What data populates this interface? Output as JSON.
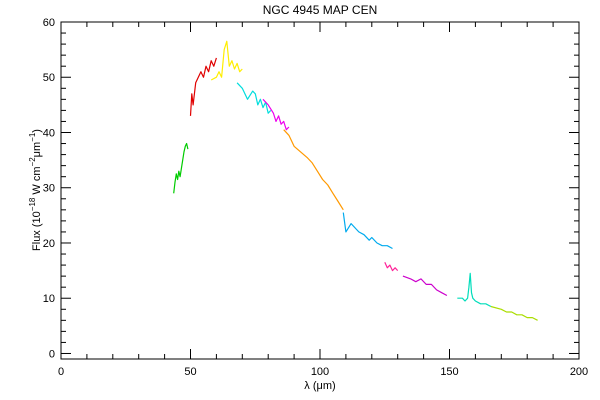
{
  "chart_data": {
    "type": "line",
    "title": "NGC 4945 MAP CEN",
    "xlabel": "λ (μm)",
    "ylabel_main": "Flux (10",
    "ylabel_exp1": "−18",
    "ylabel_mid": " W cm",
    "ylabel_exp2": "−2",
    "ylabel_um": "μm",
    "ylabel_exp3": "−1",
    "ylabel_close": ")",
    "xlim": [
      0,
      200
    ],
    "ylim": [
      -1,
      60
    ],
    "xticks": [
      0,
      50,
      100,
      150,
      200
    ],
    "xtick_labels": [
      "0",
      "50",
      "100",
      "150",
      "200"
    ],
    "yticks": [
      0,
      10,
      20,
      30,
      40,
      50,
      60
    ],
    "ytick_labels": [
      "0",
      "10",
      "20",
      "30",
      "40",
      "50",
      "60"
    ],
    "grid": false,
    "series": [
      {
        "color": "#00cc00",
        "x": [
          43.5,
          44,
          44.5,
          45,
          45.5,
          46,
          46.5,
          47,
          47.5,
          48,
          48.5,
          49
        ],
        "y": [
          29,
          31,
          32.5,
          31.5,
          33,
          32,
          33.5,
          35,
          36.5,
          37.5,
          38,
          37
        ]
      },
      {
        "color": "#e00000",
        "x": [
          50,
          50.5,
          51,
          52,
          53,
          54,
          55,
          56,
          57,
          58,
          59,
          60
        ],
        "y": [
          43,
          47,
          45,
          49,
          50,
          51,
          50,
          52,
          51,
          53,
          52,
          53.5
        ]
      },
      {
        "color": "#ffee00",
        "x": [
          58,
          60,
          61,
          62,
          63,
          64,
          65,
          66,
          67,
          68,
          69,
          70
        ],
        "y": [
          49.5,
          50,
          51,
          50,
          55,
          56.5,
          52,
          53,
          51.5,
          52.5,
          51,
          51.5
        ]
      },
      {
        "color": "#00dddd",
        "x": [
          68,
          70,
          72,
          74,
          75,
          76,
          77,
          78,
          79,
          80,
          81
        ],
        "y": [
          49,
          48,
          46,
          47.5,
          47,
          45,
          46,
          44.5,
          45.5,
          43.5,
          44
        ]
      },
      {
        "color": "#ee00ee",
        "x": [
          78,
          80,
          82,
          83,
          84,
          85,
          86,
          87,
          88
        ],
        "y": [
          46,
          45,
          43.5,
          42,
          43,
          41.5,
          42,
          40.5,
          41
        ]
      },
      {
        "color": "#ff9900",
        "x": [
          86,
          88,
          89,
          90,
          95,
          97,
          99,
          101,
          103,
          105,
          107,
          109
        ],
        "y": [
          40.5,
          39.5,
          38.5,
          37.5,
          35.5,
          34.5,
          33,
          31.5,
          30.5,
          29,
          27.5,
          26
        ]
      },
      {
        "color": "#00aaee",
        "x": [
          109,
          110,
          112,
          115,
          117,
          119,
          120,
          122,
          124,
          126,
          128
        ],
        "y": [
          25.5,
          22,
          23.5,
          22,
          21.5,
          20.5,
          21,
          20,
          19.5,
          19.5,
          19
        ]
      },
      {
        "color": "#ff2299",
        "x": [
          125,
          126,
          127,
          128,
          129,
          130
        ],
        "y": [
          16.5,
          15.5,
          16,
          15,
          15.5,
          15
        ]
      },
      {
        "color": "#cc00cc",
        "x": [
          132,
          135,
          137,
          139,
          141,
          143,
          145,
          147,
          149
        ],
        "y": [
          14,
          13.5,
          13,
          13.5,
          12.5,
          12.5,
          11.5,
          11,
          10.5
        ]
      },
      {
        "color": "#00ddbb",
        "x": [
          153,
          155,
          156,
          157,
          157.5,
          158,
          158.5,
          159,
          160,
          162,
          164,
          166
        ],
        "y": [
          10,
          10,
          9.5,
          10,
          12,
          14.5,
          11,
          10,
          9.5,
          9,
          9,
          8.5
        ]
      },
      {
        "color": "#aadd00",
        "x": [
          166,
          170,
          172,
          174,
          176,
          178,
          180,
          182,
          184
        ],
        "y": [
          8.5,
          8,
          7.5,
          7.5,
          7,
          7,
          6.5,
          6.5,
          6
        ]
      }
    ]
  }
}
